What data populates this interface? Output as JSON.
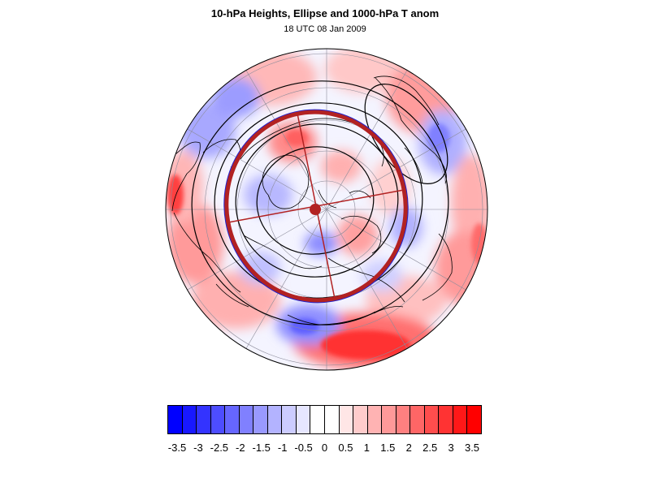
{
  "title": "10-hPa Heights, Ellipse and 1000-hPa T anom",
  "subtitle": "18 UTC 08 Jan 2009",
  "colors": {
    "negative_max": "#0000ff",
    "positive_max": "#ff0000",
    "ellipse": "#b22222",
    "contour": "#000000",
    "coastline": "#000000",
    "grid": "#8c8c9a"
  },
  "colorbar": {
    "colors": [
      "#0000ff",
      "#1818ff",
      "#3333ff",
      "#4d4dff",
      "#6666ff",
      "#8080ff",
      "#9999ff",
      "#b3b3ff",
      "#ccccff",
      "#e6e6ff",
      "#ffffff",
      "#ffffff",
      "#ffe6e6",
      "#ffcccc",
      "#ffb3b3",
      "#ff9999",
      "#ff8080",
      "#ff6666",
      "#ff4d4d",
      "#ff3333",
      "#ff1818",
      "#ff0000"
    ],
    "labels": [
      "-3.5",
      "-3",
      "-2.5",
      "-2",
      "-1.5",
      "-1",
      "-0.5",
      "0",
      "0.5",
      "1",
      "1.5",
      "2",
      "2.5",
      "3",
      "3.5"
    ]
  },
  "map": {
    "projection": "north-polar stereographic",
    "field": "1000-hPa temperature anomaly",
    "contours": "10-hPa geopotential heights",
    "overlay": "polar vortex ellipse with axes and centroid"
  }
}
